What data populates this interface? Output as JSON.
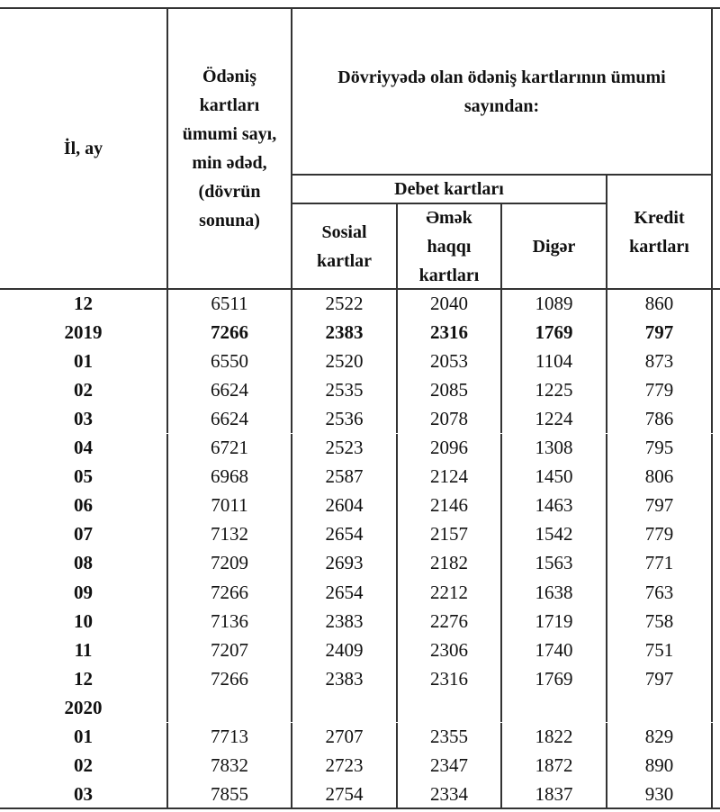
{
  "header": {
    "year_month": "İl, ay",
    "total": "Ödəniş kartları ümumi sayı, min ədəd, (dövrün sonuna)",
    "group": "Dövriyyədə olan ödəniş kartlarının ümumi sayından:",
    "debit": "Debet kartları",
    "social": "Sosial kartlar",
    "salary": "Əmək haqqı kartları",
    "other": "Digər",
    "credit": "Kredit kartları"
  },
  "table": {
    "rows": [
      {
        "label": "12",
        "values": [
          6511,
          2522,
          2040,
          1089,
          860
        ]
      },
      {
        "label": "2019",
        "values": [
          7266,
          2383,
          2316,
          1769,
          797
        ],
        "bold": true
      },
      {
        "label": "01",
        "values": [
          6550,
          2520,
          2053,
          1104,
          873
        ]
      },
      {
        "label": "02",
        "values": [
          6624,
          2535,
          2085,
          1225,
          779
        ]
      },
      {
        "label": "03",
        "values": [
          6624,
          2536,
          2078,
          1224,
          786
        ]
      },
      {
        "label": "04",
        "values": [
          6721,
          2523,
          2096,
          1308,
          795
        ]
      },
      {
        "label": "05",
        "values": [
          6968,
          2587,
          2124,
          1450,
          806
        ]
      },
      {
        "label": "06",
        "values": [
          7011,
          2604,
          2146,
          1463,
          797
        ]
      },
      {
        "label": "07",
        "values": [
          7132,
          2654,
          2157,
          1542,
          779
        ]
      },
      {
        "label": "08",
        "values": [
          7209,
          2693,
          2182,
          1563,
          771
        ]
      },
      {
        "label": "09",
        "values": [
          7266,
          2654,
          2212,
          1638,
          763
        ]
      },
      {
        "label": "10",
        "values": [
          7136,
          2383,
          2276,
          1719,
          758
        ]
      },
      {
        "label": "11",
        "values": [
          7207,
          2409,
          2306,
          1740,
          751
        ]
      },
      {
        "label": "12",
        "values": [
          7266,
          2383,
          2316,
          1769,
          797
        ]
      },
      {
        "label": "2020",
        "values": []
      },
      {
        "label": "01",
        "values": [
          7713,
          2707,
          2355,
          1822,
          829
        ]
      },
      {
        "label": "02",
        "values": [
          7832,
          2723,
          2347,
          1872,
          890
        ]
      },
      {
        "label": "03",
        "values": [
          7855,
          2754,
          2334,
          1837,
          930
        ]
      }
    ]
  }
}
